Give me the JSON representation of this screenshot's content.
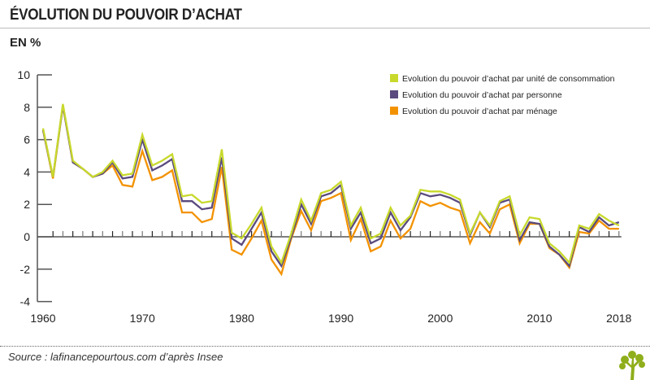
{
  "header": {
    "title": "ÉVOLUTION DU POUVOIR D’ACHAT",
    "unit": "EN %"
  },
  "footer": {
    "source": "Source : lafinancepourtous.com d’après Insee",
    "logo": "tree-logo"
  },
  "chart_data": {
    "type": "line",
    "title": "Évolution du pouvoir d’achat",
    "ylabel": "EN %",
    "xlim": [
      1960,
      2018
    ],
    "ylim": [
      -4,
      10
    ],
    "yticks": [
      -4,
      -2,
      0,
      2,
      4,
      6,
      8,
      10
    ],
    "xticks": [
      1960,
      1970,
      1980,
      1990,
      2000,
      2010,
      2018
    ],
    "legend_position": "top-right",
    "x": [
      1960,
      1961,
      1962,
      1963,
      1964,
      1965,
      1966,
      1967,
      1968,
      1969,
      1970,
      1971,
      1972,
      1973,
      1974,
      1975,
      1976,
      1977,
      1978,
      1979,
      1980,
      1981,
      1982,
      1983,
      1984,
      1985,
      1986,
      1987,
      1988,
      1989,
      1990,
      1991,
      1992,
      1993,
      1994,
      1995,
      1996,
      1997,
      1998,
      1999,
      2000,
      2001,
      2002,
      2003,
      2004,
      2005,
      2006,
      2007,
      2008,
      2009,
      2010,
      2011,
      2012,
      2013,
      2014,
      2015,
      2016,
      2017,
      2018
    ],
    "series": [
      {
        "name": "Evolution du pouvoir d’achat par unité de consommation",
        "color": "#c8d92c",
        "values": [
          6.7,
          3.7,
          8.2,
          4.7,
          4.2,
          3.7,
          4.0,
          4.7,
          3.8,
          3.9,
          6.3,
          4.4,
          4.7,
          5.1,
          2.5,
          2.6,
          2.1,
          2.2,
          5.4,
          0.25,
          -0.1,
          0.8,
          1.8,
          -0.6,
          -1.6,
          0.2,
          2.3,
          1.0,
          2.7,
          2.9,
          3.4,
          0.7,
          1.8,
          -0.1,
          0.2,
          1.8,
          0.7,
          1.3,
          2.9,
          2.8,
          2.8,
          2.6,
          2.3,
          0.2,
          1.5,
          0.7,
          2.2,
          2.5,
          0.1,
          1.2,
          1.1,
          -0.4,
          -0.9,
          -1.6,
          0.7,
          0.5,
          1.4,
          1.0,
          0.7
        ]
      },
      {
        "name": "Evolution du pouvoir d’achat par personne",
        "color": "#5a4a7e",
        "values": [
          6.6,
          3.7,
          8.1,
          4.6,
          4.2,
          3.7,
          3.9,
          4.6,
          3.6,
          3.7,
          6.0,
          4.1,
          4.4,
          4.8,
          2.2,
          2.2,
          1.7,
          1.8,
          4.9,
          -0.1,
          -0.5,
          0.5,
          1.5,
          -0.9,
          -1.8,
          0.0,
          2.0,
          0.8,
          2.5,
          2.7,
          3.2,
          0.5,
          1.5,
          -0.4,
          -0.1,
          1.5,
          0.4,
          1.2,
          2.7,
          2.5,
          2.6,
          2.4,
          2.1,
          0.1,
          1.5,
          0.6,
          2.1,
          2.3,
          -0.2,
          0.9,
          0.8,
          -0.6,
          -1.1,
          -1.8,
          0.6,
          0.3,
          1.2,
          0.7,
          0.9
        ]
      },
      {
        "name": "Evolution du pouvoir d’achat par ménage",
        "color": "#f39200",
        "values": [
          6.6,
          3.6,
          8.1,
          4.6,
          4.2,
          3.7,
          3.9,
          4.4,
          3.2,
          3.1,
          5.3,
          3.5,
          3.7,
          4.1,
          1.5,
          1.5,
          0.9,
          1.1,
          4.3,
          -0.8,
          -1.1,
          -0.1,
          1.0,
          -1.4,
          -2.3,
          -0.1,
          1.6,
          0.4,
          2.2,
          2.4,
          2.7,
          -0.2,
          1.1,
          -0.9,
          -0.6,
          1.0,
          -0.1,
          0.5,
          2.2,
          1.9,
          2.1,
          1.8,
          1.6,
          -0.4,
          0.9,
          0.2,
          1.7,
          2.0,
          -0.4,
          0.8,
          0.8,
          -0.7,
          -1.1,
          -1.9,
          0.3,
          0.2,
          1.0,
          0.5,
          0.5
        ]
      }
    ]
  }
}
